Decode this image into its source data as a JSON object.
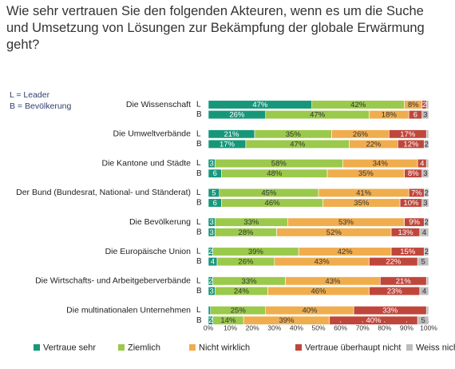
{
  "chart_data": {
    "type": "stacked-bar-horizontal",
    "title": "Wie sehr vertrauen Sie den folgenden Akteuren, wenn es um die Suche und Umsetzung von Lösungen zur Bekämpfung der globale Erwärmung geht?",
    "notes": [
      "L = Leader",
      "B = Bevölkerung"
    ],
    "groups": [
      "Die Wissenschaft",
      "Die Umweltverbände",
      "Die Kantone und Städte",
      "Der Bund (Bundesrat, National- und Ständerat)",
      "Die Bevölkerung",
      "Die Europäische Union",
      "Die Wirtschafts- und Arbeitgeberverbände",
      "Die multinationalen Unternehmen"
    ],
    "subcategories": [
      "L",
      "B"
    ],
    "series": [
      {
        "name": "Vertraue sehr",
        "color": "#17977a",
        "values": [
          47,
          26,
          21,
          17,
          3,
          6,
          5,
          6,
          3,
          3,
          2,
          4,
          2,
          3,
          1,
          2
        ],
        "value_labels": [
          "47%",
          "26%",
          "21%",
          "17%",
          "3",
          "6",
          "5",
          "6",
          "3",
          "3",
          "2",
          "4",
          "2",
          "3",
          null,
          "2"
        ]
      },
      {
        "name": "Ziemlich",
        "color": "#9bc94b",
        "values": [
          42,
          47,
          35,
          47,
          58,
          48,
          45,
          46,
          33,
          28,
          39,
          26,
          33,
          24,
          25,
          14
        ],
        "value_labels": [
          "42%",
          "47%",
          "35%",
          "47%",
          "58%",
          "48%",
          "45%",
          "46%",
          "33%",
          "28%",
          "39%",
          "26%",
          "33%",
          "24%",
          "25%",
          "14%"
        ]
      },
      {
        "name": "Nicht wirklich",
        "color": "#f0ad4e",
        "values": [
          8,
          18,
          26,
          22,
          34,
          35,
          41,
          35,
          53,
          52,
          42,
          43,
          43,
          46,
          40,
          39
        ],
        "value_labels": [
          "8%",
          "18%",
          "26%",
          "22%",
          "34%",
          "35%",
          "41%",
          "35%",
          "53%",
          "52%",
          "42%",
          "43%",
          "43%",
          "46%",
          "40%",
          "39%"
        ]
      },
      {
        "name": "Vertraue überhaupt nicht",
        "color": "#bf463b",
        "values": [
          2,
          6,
          17,
          12,
          4,
          8,
          7,
          10,
          9,
          13,
          15,
          22,
          21,
          23,
          33,
          40
        ],
        "value_labels": [
          "2",
          "6",
          "17%",
          "12%",
          "4",
          "8%",
          "7%",
          "10%",
          "9%",
          "13%",
          "15%",
          "22%",
          "21%",
          "23%",
          "33%",
          "40%"
        ]
      },
      {
        "name": "Weiss nicht",
        "color": "#bdbdbd",
        "values": [
          1,
          3,
          1,
          2,
          1,
          3,
          2,
          3,
          2,
          4,
          2,
          5,
          1,
          4,
          1,
          5
        ],
        "value_labels": [
          null,
          "3",
          null,
          "2",
          null,
          "3",
          "2",
          "3",
          "2",
          "4",
          "2",
          "5",
          null,
          "4",
          null,
          "5"
        ]
      }
    ],
    "xlim": [
      0,
      100
    ],
    "xticks": [
      {
        "value": 0,
        "label": "0%"
      },
      {
        "value": 10,
        "label": "10%"
      },
      {
        "value": 20,
        "label": "20%"
      },
      {
        "value": 30,
        "label": "30%"
      },
      {
        "value": 40,
        "label": "40%"
      },
      {
        "value": 50,
        "label": "50%"
      },
      {
        "value": 60,
        "label": "60%"
      },
      {
        "value": 70,
        "label": "70%"
      },
      {
        "value": 80,
        "label": "80%"
      },
      {
        "value": 90,
        "label": "90%"
      },
      {
        "value": 100,
        "label": "100%"
      }
    ]
  }
}
